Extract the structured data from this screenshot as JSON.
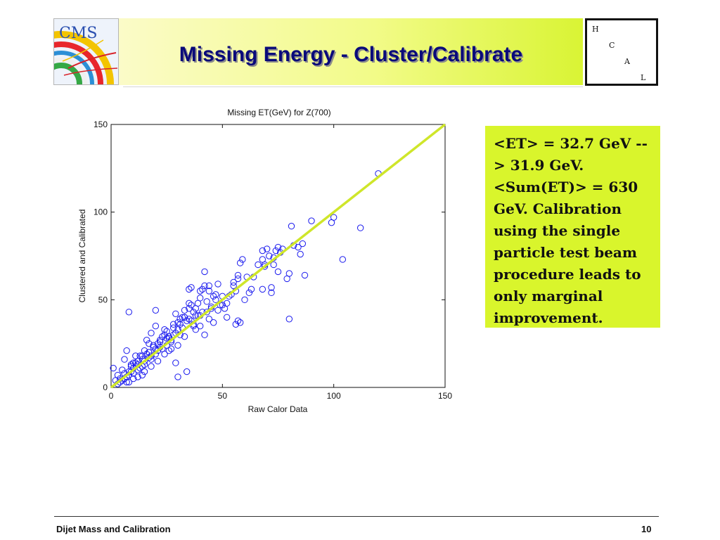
{
  "slide": {
    "title": "Missing Energy - Cluster/Calibrate",
    "logo_text": "CMS",
    "hcal_letters": [
      "H",
      "C",
      "A",
      "L"
    ],
    "callout": "<ET> = 32.7 GeV --> 31.9 GeV. <Sum(ET)> = 630 GeV. Calibration using the single particle test beam procedure leads to only marginal improvement.",
    "footer_left": "Dijet Mass and Calibration",
    "page_number": "10"
  },
  "colors": {
    "title_text": "#0a0a7a",
    "callout_bg": "#d9f52c",
    "marker": "#1a1aee",
    "fit_line": "#cfe62a"
  },
  "chart_data": {
    "type": "scatter",
    "title": "Missing ET(GeV) for Z(700)",
    "xlabel": "Raw Calor Data",
    "ylabel": "Clustered and Calibrated",
    "xlim": [
      0,
      150
    ],
    "ylim": [
      0,
      150
    ],
    "xticks": [
      0,
      50,
      100,
      150
    ],
    "yticks": [
      0,
      50,
      100,
      150
    ],
    "xtick_labels": [
      "0",
      "50",
      "100",
      "150"
    ],
    "ytick_labels": [
      "0",
      "50",
      "100",
      "150"
    ],
    "grid": false,
    "line": {
      "x": [
        0,
        150
      ],
      "y": [
        0,
        150
      ]
    },
    "points": {
      "x": [
        120,
        112,
        104,
        100,
        99,
        90,
        87,
        86,
        85,
        82,
        81,
        80,
        79,
        77,
        75,
        75,
        74,
        73,
        71,
        70,
        69,
        69,
        68,
        68,
        62,
        59,
        58,
        57,
        56,
        55,
        52,
        50,
        49,
        48,
        47,
        45,
        44,
        43,
        42,
        42,
        41,
        40,
        40,
        39,
        38,
        38,
        37,
        36,
        35,
        35,
        35,
        34,
        33,
        33,
        32,
        31,
        31,
        30,
        30,
        29,
        28,
        28,
        27,
        26,
        25,
        25,
        24,
        23,
        22,
        22,
        21,
        20,
        20,
        19,
        18,
        18,
        17,
        17,
        16,
        15,
        15,
        14,
        14,
        13,
        12,
        12,
        11,
        10,
        10,
        9,
        9,
        8,
        8,
        7,
        6,
        6,
        5,
        4,
        3,
        2,
        1,
        8,
        20,
        30,
        34,
        36,
        42,
        46,
        51,
        56,
        57,
        58,
        72,
        72,
        80,
        55,
        44,
        40,
        37,
        33,
        26,
        21,
        17,
        14,
        12,
        10,
        7,
        5,
        40,
        47,
        53,
        61,
        66,
        28,
        23,
        18,
        31,
        35,
        38,
        45,
        50,
        27,
        24,
        16,
        11,
        9,
        6,
        20,
        15,
        13,
        22,
        29,
        32,
        41,
        43,
        48,
        54,
        60,
        64,
        19,
        25,
        36,
        39,
        57,
        63,
        73,
        76,
        84,
        68,
        30,
        26,
        21,
        18,
        12,
        8,
        4,
        3,
        15,
        17,
        24,
        27,
        33,
        37,
        44,
        46,
        52,
        29,
        14,
        10,
        7
      ],
      "y": [
        122,
        91,
        73,
        97,
        94,
        95,
        64,
        82,
        76,
        81,
        92,
        39,
        62,
        79,
        80,
        66,
        78,
        74,
        75,
        79,
        70,
        69,
        56,
        78,
        54,
        73,
        71,
        64,
        36,
        58,
        40,
        47,
        47,
        59,
        50,
        45,
        55,
        43,
        66,
        58,
        56,
        55,
        51,
        48,
        45,
        41,
        43,
        47,
        56,
        48,
        45,
        38,
        40,
        44,
        40,
        36,
        30,
        37,
        33,
        31,
        34,
        30,
        27,
        29,
        28,
        24,
        30,
        22,
        23,
        26,
        21,
        19,
        22,
        24,
        18,
        16,
        20,
        17,
        19,
        15,
        13,
        16,
        12,
        11,
        13,
        10,
        14,
        8,
        11,
        9,
        12,
        7,
        9,
        6,
        5,
        8,
        4,
        3,
        2,
        4,
        11,
        43,
        44,
        6,
        9,
        57,
        30,
        52,
        45,
        55,
        38,
        37,
        57,
        54,
        65,
        60,
        58,
        41,
        36,
        40,
        28,
        25,
        20,
        18,
        15,
        14,
        21,
        10,
        35,
        53,
        52,
        63,
        70,
        36,
        29,
        31,
        39,
        39,
        33,
        46,
        52,
        26,
        33,
        27,
        18,
        13,
        16,
        35,
        21,
        18,
        27,
        42,
        34,
        43,
        49,
        44,
        53,
        50,
        63,
        23,
        32,
        38,
        41,
        62,
        56,
        70,
        77,
        80,
        73,
        24,
        21,
        15,
        12,
        6,
        3,
        5,
        7,
        9,
        25,
        19,
        22,
        29,
        35,
        39,
        37,
        48,
        14,
        7,
        5,
        3
      ]
    }
  }
}
